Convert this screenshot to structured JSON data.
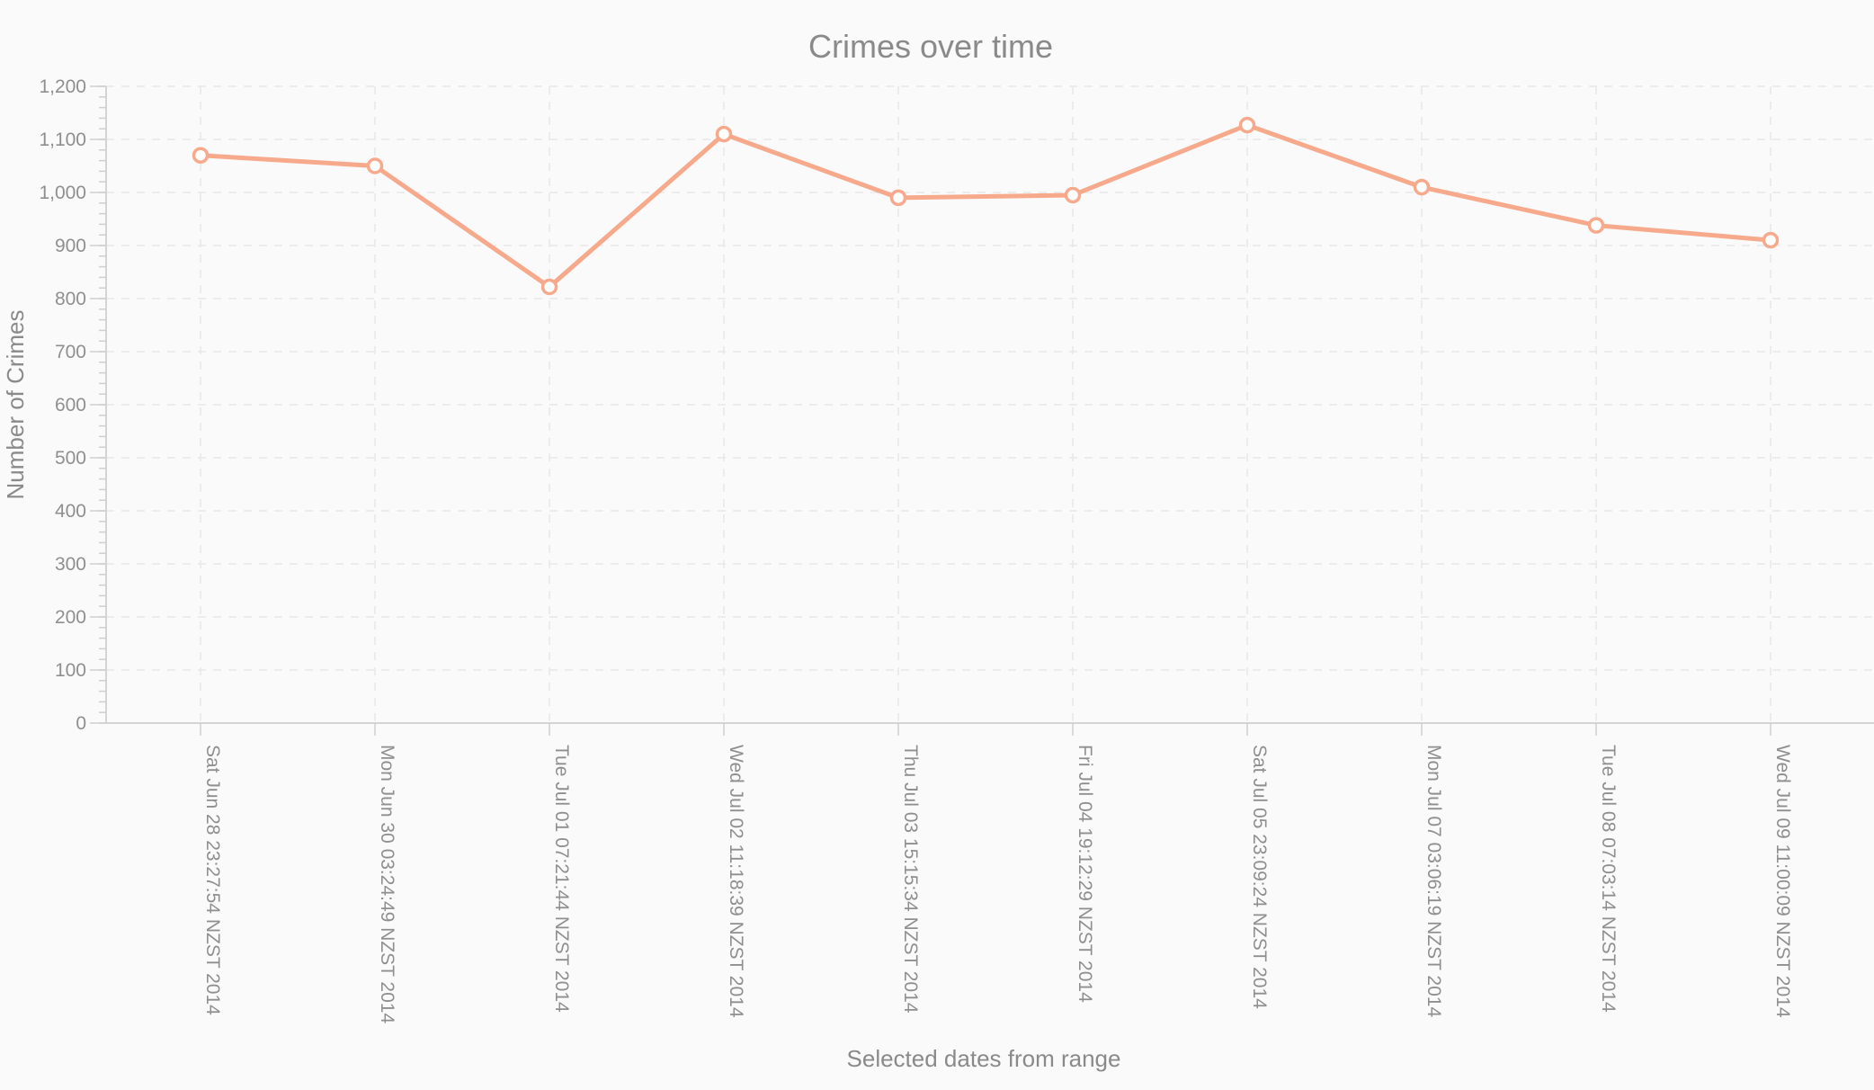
{
  "chart_data": {
    "type": "line",
    "title": "Crimes over time",
    "xlabel": "Selected dates from range",
    "ylabel": "Number of Crimes",
    "ylim": [
      0,
      1200
    ],
    "yticks": [
      "0",
      "100",
      "200",
      "300",
      "400",
      "500",
      "600",
      "700",
      "800",
      "900",
      "1,000",
      "1,100",
      "1,200"
    ],
    "categories": [
      "Sat Jun 28 23:27:54 NZST 2014",
      "Mon Jun 30 03:24:49 NZST 2014",
      "Tue Jul 01 07:21:44 NZST 2014",
      "Wed Jul 02 11:18:39 NZST 2014",
      "Thu Jul 03 15:15:34 NZST 2014",
      "Fri Jul 04 19:12:29 NZST 2014",
      "Sat Jul 05 23:09:24 NZST 2014",
      "Mon Jul 07 03:06:19 NZST 2014",
      "Tue Jul 08 07:03:14 NZST 2014",
      "Wed Jul 09 11:00:09 NZST 2014"
    ],
    "series": [
      {
        "values": [
          1070,
          1050,
          822,
          1110,
          990,
          995,
          1127,
          1010,
          938,
          910
        ],
        "color": "#f7a98b"
      }
    ],
    "grid": true,
    "legend": "none"
  }
}
